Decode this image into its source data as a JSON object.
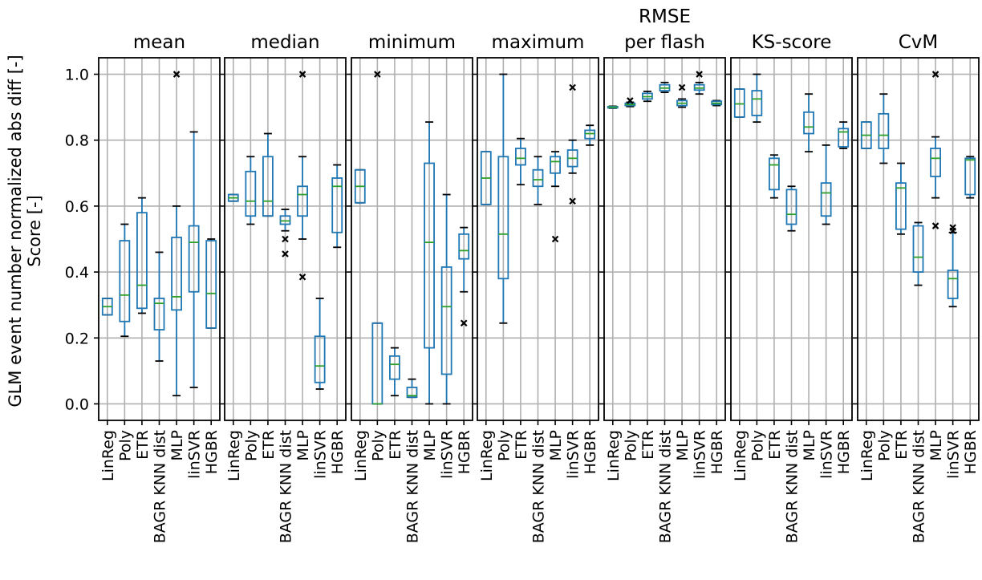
{
  "chart_data": {
    "type": "box",
    "ylabel": "GLM event number normalized abs diff [-]",
    "ylabel2": "Score [-]",
    "ylim": [
      -0.05,
      1.05
    ],
    "yticks": [
      0.0,
      0.2,
      0.4,
      0.6,
      0.8,
      1.0
    ],
    "ytick_labels": [
      "0.0",
      "0.2",
      "0.4",
      "0.6",
      "0.8",
      "1.0"
    ],
    "grid": true,
    "categories": [
      "LinReg",
      "Poly",
      "ETR",
      "BAGR KNN dist",
      "MLP",
      "linSVR",
      "HGBR"
    ],
    "colors": {
      "box": "#1f77b4",
      "median": "#2ca02c",
      "grid": "#b0b0b0"
    },
    "panels": [
      {
        "title": "mean",
        "boxes": [
          {
            "q1": 0.27,
            "median": 0.295,
            "q3": 0.32,
            "wl": 0.27,
            "wh": 0.32,
            "fliers": []
          },
          {
            "q1": 0.25,
            "median": 0.33,
            "q3": 0.495,
            "wl": 0.205,
            "wh": 0.545,
            "fliers": []
          },
          {
            "q1": 0.29,
            "median": 0.36,
            "q3": 0.58,
            "wl": 0.275,
            "wh": 0.625,
            "fliers": []
          },
          {
            "q1": 0.225,
            "median": 0.305,
            "q3": 0.32,
            "wl": 0.13,
            "wh": 0.46,
            "fliers": []
          },
          {
            "q1": 0.285,
            "median": 0.325,
            "q3": 0.505,
            "wl": 0.025,
            "wh": 0.6,
            "fliers": [
              1.0
            ]
          },
          {
            "q1": 0.34,
            "median": 0.49,
            "q3": 0.54,
            "wl": 0.05,
            "wh": 0.825,
            "fliers": []
          },
          {
            "q1": 0.23,
            "median": 0.335,
            "q3": 0.495,
            "wl": 0.23,
            "wh": 0.5,
            "fliers": []
          }
        ]
      },
      {
        "title": "median",
        "boxes": [
          {
            "q1": 0.615,
            "median": 0.625,
            "q3": 0.635,
            "wl": 0.615,
            "wh": 0.635,
            "fliers": []
          },
          {
            "q1": 0.57,
            "median": 0.615,
            "q3": 0.705,
            "wl": 0.545,
            "wh": 0.75,
            "fliers": []
          },
          {
            "q1": 0.57,
            "median": 0.615,
            "q3": 0.75,
            "wl": 0.57,
            "wh": 0.82,
            "fliers": []
          },
          {
            "q1": 0.545,
            "median": 0.555,
            "q3": 0.57,
            "wl": 0.525,
            "wh": 0.59,
            "fliers": [
              0.5,
              0.455
            ]
          },
          {
            "q1": 0.57,
            "median": 0.635,
            "q3": 0.66,
            "wl": 0.5,
            "wh": 0.75,
            "fliers": [
              1.0,
              0.385
            ]
          },
          {
            "q1": 0.065,
            "median": 0.115,
            "q3": 0.205,
            "wl": 0.045,
            "wh": 0.32,
            "fliers": []
          },
          {
            "q1": 0.52,
            "median": 0.66,
            "q3": 0.685,
            "wl": 0.475,
            "wh": 0.725,
            "fliers": []
          }
        ]
      },
      {
        "title": "minimum",
        "boxes": [
          {
            "q1": 0.61,
            "median": 0.66,
            "q3": 0.71,
            "wl": 0.61,
            "wh": 0.71,
            "fliers": []
          },
          {
            "q1": 0.0,
            "median": 0.0,
            "q3": 0.245,
            "wl": 0.0,
            "wh": 0.245,
            "fliers": [
              1.0
            ]
          },
          {
            "q1": 0.075,
            "median": 0.12,
            "q3": 0.145,
            "wl": 0.025,
            "wh": 0.17,
            "fliers": []
          },
          {
            "q1": 0.02,
            "median": 0.025,
            "q3": 0.05,
            "wl": 0.02,
            "wh": 0.075,
            "fliers": []
          },
          {
            "q1": 0.17,
            "median": 0.49,
            "q3": 0.73,
            "wl": 0.0,
            "wh": 0.855,
            "fliers": []
          },
          {
            "q1": 0.09,
            "median": 0.295,
            "q3": 0.415,
            "wl": 0.0,
            "wh": 0.635,
            "fliers": []
          },
          {
            "q1": 0.44,
            "median": 0.465,
            "q3": 0.515,
            "wl": 0.34,
            "wh": 0.535,
            "fliers": [
              0.245
            ]
          }
        ]
      },
      {
        "title": "maximum",
        "boxes": [
          {
            "q1": 0.605,
            "median": 0.685,
            "q3": 0.765,
            "wl": 0.605,
            "wh": 0.765,
            "fliers": []
          },
          {
            "q1": 0.38,
            "median": 0.515,
            "q3": 0.75,
            "wl": 0.245,
            "wh": 1.0,
            "fliers": []
          },
          {
            "q1": 0.725,
            "median": 0.745,
            "q3": 0.775,
            "wl": 0.665,
            "wh": 0.805,
            "fliers": []
          },
          {
            "q1": 0.66,
            "median": 0.68,
            "q3": 0.71,
            "wl": 0.605,
            "wh": 0.75,
            "fliers": []
          },
          {
            "q1": 0.7,
            "median": 0.735,
            "q3": 0.75,
            "wl": 0.66,
            "wh": 0.765,
            "fliers": [
              0.5
            ]
          },
          {
            "q1": 0.72,
            "median": 0.745,
            "q3": 0.77,
            "wl": 0.7,
            "wh": 0.8,
            "fliers": [
              0.96,
              0.615
            ]
          },
          {
            "q1": 0.805,
            "median": 0.82,
            "q3": 0.83,
            "wl": 0.785,
            "wh": 0.845,
            "fliers": []
          }
        ]
      },
      {
        "title": "RMSE",
        "title2": "per flash",
        "boxes": [
          {
            "q1": 0.898,
            "median": 0.9,
            "q3": 0.902,
            "wl": 0.897,
            "wh": 0.903,
            "fliers": []
          },
          {
            "q1": 0.905,
            "median": 0.908,
            "q3": 0.912,
            "wl": 0.902,
            "wh": 0.915,
            "fliers": [
              0.92
            ]
          },
          {
            "q1": 0.925,
            "median": 0.932,
            "q3": 0.942,
            "wl": 0.918,
            "wh": 0.948,
            "fliers": []
          },
          {
            "q1": 0.95,
            "median": 0.958,
            "q3": 0.968,
            "wl": 0.945,
            "wh": 0.975,
            "fliers": []
          },
          {
            "q1": 0.905,
            "median": 0.912,
            "q3": 0.92,
            "wl": 0.9,
            "wh": 0.925,
            "fliers": [
              0.96
            ]
          },
          {
            "q1": 0.952,
            "median": 0.958,
            "q3": 0.968,
            "wl": 0.94,
            "wh": 0.975,
            "fliers": [
              1.0
            ]
          },
          {
            "q1": 0.908,
            "median": 0.912,
            "q3": 0.918,
            "wl": 0.905,
            "wh": 0.92,
            "fliers": []
          }
        ]
      },
      {
        "title": "KS-score",
        "boxes": [
          {
            "q1": 0.87,
            "median": 0.91,
            "q3": 0.955,
            "wl": 0.87,
            "wh": 0.955,
            "fliers": []
          },
          {
            "q1": 0.875,
            "median": 0.925,
            "q3": 0.95,
            "wl": 0.855,
            "wh": 1.0,
            "fliers": []
          },
          {
            "q1": 0.65,
            "median": 0.725,
            "q3": 0.745,
            "wl": 0.625,
            "wh": 0.755,
            "fliers": []
          },
          {
            "q1": 0.545,
            "median": 0.575,
            "q3": 0.65,
            "wl": 0.525,
            "wh": 0.66,
            "fliers": []
          },
          {
            "q1": 0.82,
            "median": 0.84,
            "q3": 0.885,
            "wl": 0.765,
            "wh": 0.94,
            "fliers": []
          },
          {
            "q1": 0.57,
            "median": 0.64,
            "q3": 0.67,
            "wl": 0.545,
            "wh": 0.785,
            "fliers": []
          },
          {
            "q1": 0.78,
            "median": 0.825,
            "q3": 0.835,
            "wl": 0.775,
            "wh": 0.855,
            "fliers": []
          }
        ]
      },
      {
        "title": "CvM",
        "boxes": [
          {
            "q1": 0.775,
            "median": 0.815,
            "q3": 0.855,
            "wl": 0.775,
            "wh": 0.855,
            "fliers": []
          },
          {
            "q1": 0.775,
            "median": 0.815,
            "q3": 0.88,
            "wl": 0.73,
            "wh": 0.94,
            "fliers": []
          },
          {
            "q1": 0.53,
            "median": 0.655,
            "q3": 0.67,
            "wl": 0.515,
            "wh": 0.73,
            "fliers": []
          },
          {
            "q1": 0.4,
            "median": 0.445,
            "q3": 0.54,
            "wl": 0.36,
            "wh": 0.55,
            "fliers": []
          },
          {
            "q1": 0.69,
            "median": 0.745,
            "q3": 0.775,
            "wl": 0.625,
            "wh": 0.81,
            "fliers": [
              1.0,
              0.54
            ]
          },
          {
            "q1": 0.32,
            "median": 0.38,
            "q3": 0.405,
            "wl": 0.295,
            "wh": 0.52,
            "fliers": [
              0.535,
              0.525
            ]
          },
          {
            "q1": 0.635,
            "median": 0.74,
            "q3": 0.745,
            "wl": 0.625,
            "wh": 0.75,
            "fliers": []
          }
        ]
      }
    ]
  }
}
